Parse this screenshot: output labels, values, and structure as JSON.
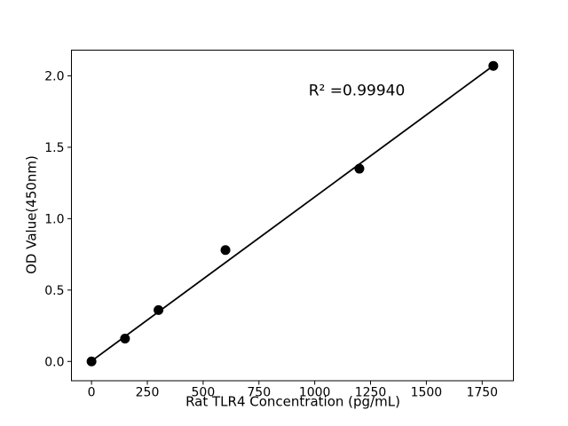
{
  "chart_data": {
    "type": "scatter",
    "title": "",
    "xlabel": "Rat TLR4 Concentration (pg/mL)",
    "ylabel": "OD Value(450nm)",
    "annotation": {
      "text": "R² =0.99940",
      "x": 1190,
      "y": 1.89
    },
    "x": [
      0,
      150,
      300,
      600,
      1200,
      1800
    ],
    "y": [
      0.0,
      0.16,
      0.36,
      0.78,
      1.35,
      2.07
    ],
    "fit_line": {
      "type": "linear",
      "x_start": 0,
      "x_end": 1800,
      "intercept": 0.003,
      "slope": 0.001149
    },
    "xticks": [
      "0",
      "250",
      "500",
      "750",
      "1000",
      "1250",
      "1500",
      "1750"
    ],
    "xtick_values": [
      0,
      250,
      500,
      750,
      1000,
      1250,
      1500,
      1750
    ],
    "yticks": [
      "0.0",
      "0.5",
      "1.0",
      "1.5",
      "2.0"
    ],
    "ytick_values": [
      0.0,
      0.5,
      1.0,
      1.5,
      2.0
    ],
    "xlim": [
      -90,
      1890
    ],
    "ylim": [
      -0.135,
      2.18
    ],
    "grid": false,
    "legend": null,
    "marker_color": "#000000",
    "line_color": "#000000",
    "axis_color": "#000000",
    "background_color": "#ffffff"
  }
}
